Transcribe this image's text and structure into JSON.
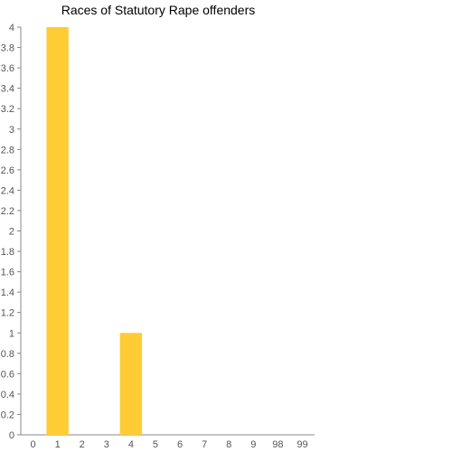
{
  "chart_data": {
    "type": "bar",
    "title": "Races of Statutory Rape offenders",
    "xlabel": "",
    "ylabel": "",
    "categories": [
      "0",
      "1",
      "2",
      "3",
      "4",
      "5",
      "6",
      "7",
      "8",
      "9",
      "98",
      "99"
    ],
    "values": [
      0,
      4,
      0,
      0,
      1,
      0,
      0,
      0,
      0,
      0,
      0,
      0
    ],
    "ylim": [
      0,
      4
    ],
    "yticks": [
      "0",
      "0.2",
      "0.4",
      "0.6",
      "0.8",
      "1",
      "1.2",
      "1.4",
      "1.6",
      "1.8",
      "2",
      "2.2",
      "2.4",
      "2.6",
      "2.8",
      "3",
      "3.2",
      "3.4",
      "3.6",
      "3.8",
      "4"
    ],
    "grid": false,
    "legend": "none",
    "bar_color": "#ffcc33",
    "axis_color": "#888888"
  }
}
